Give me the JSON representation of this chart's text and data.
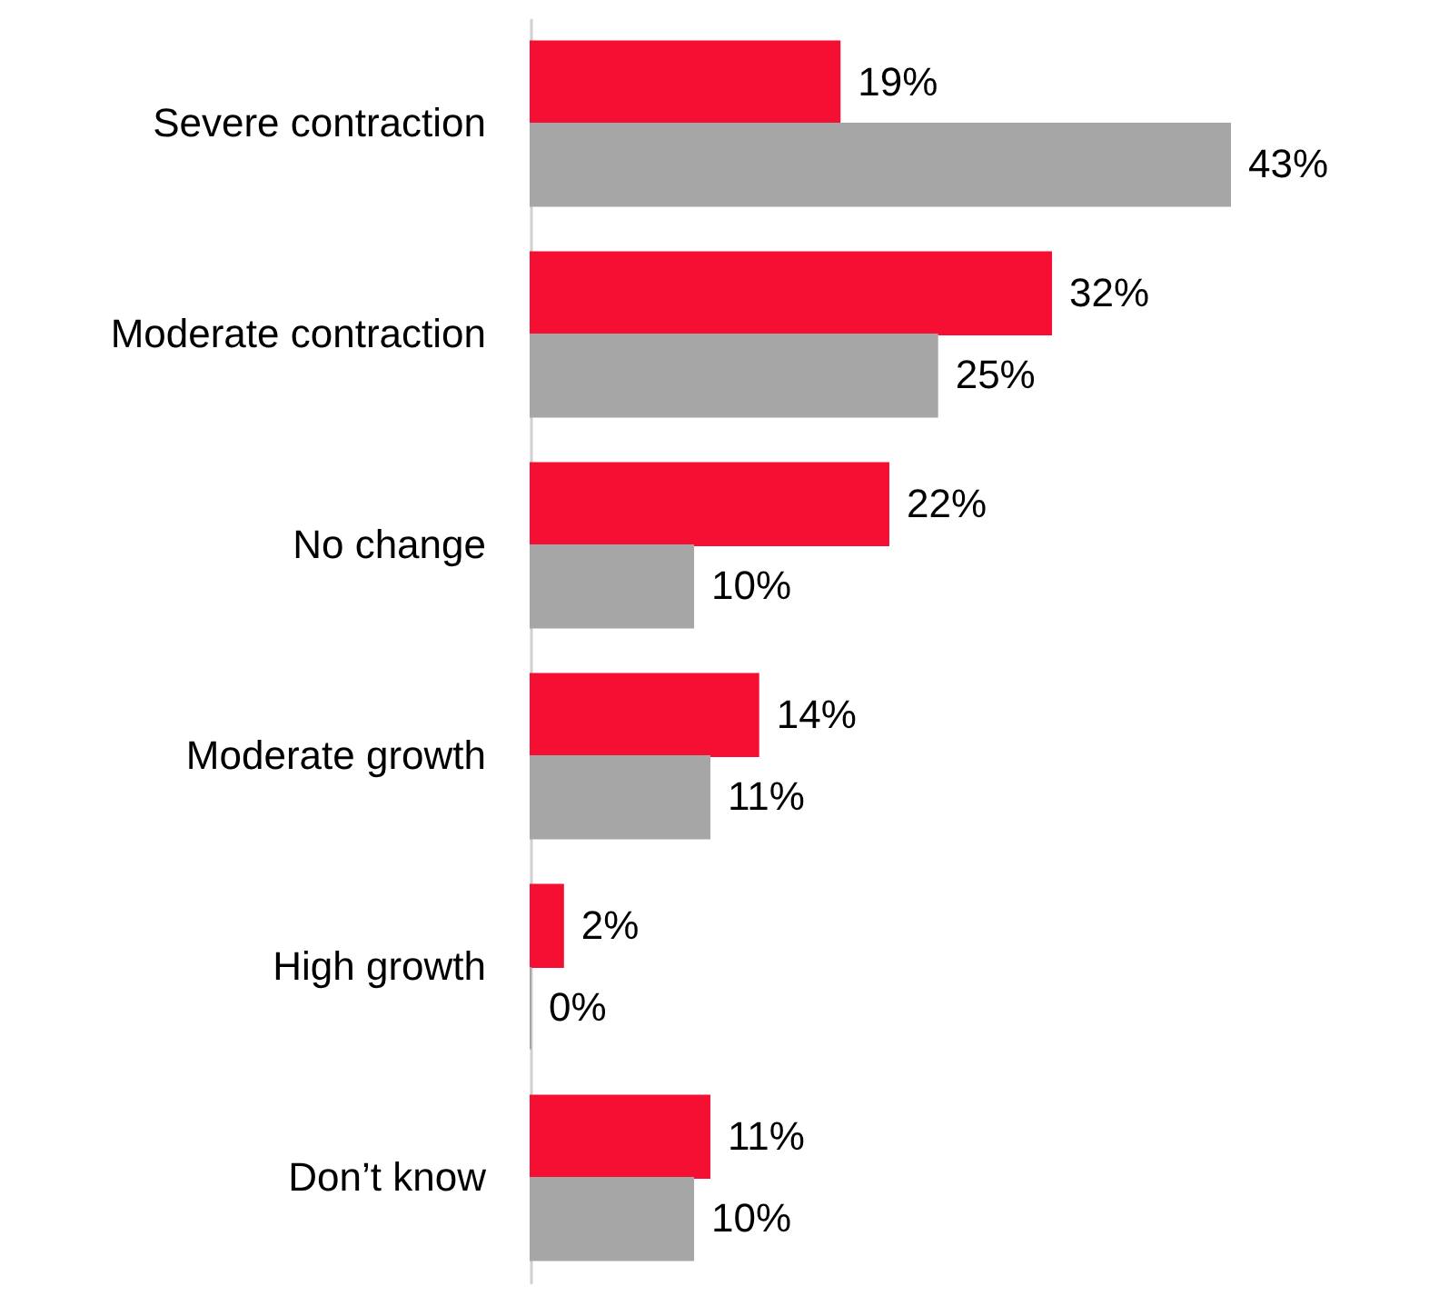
{
  "chart_data": {
    "type": "bar",
    "orientation": "horizontal",
    "categories": [
      "Severe contraction",
      "Moderate contraction",
      "No change",
      "Moderate growth",
      "High growth",
      "Don’t know"
    ],
    "series": [
      {
        "color": "#f50f32",
        "values": [
          19,
          32,
          22,
          14,
          2,
          11
        ],
        "value_labels": [
          "19%",
          "32%",
          "22%",
          "14%",
          "2%",
          "11%"
        ]
      },
      {
        "color": "#a6a6a6",
        "values": [
          43,
          25,
          10,
          11,
          0,
          10
        ],
        "value_labels": [
          "43%",
          "25%",
          "10%",
          "11%",
          "0%",
          "10%"
        ]
      }
    ]
  }
}
